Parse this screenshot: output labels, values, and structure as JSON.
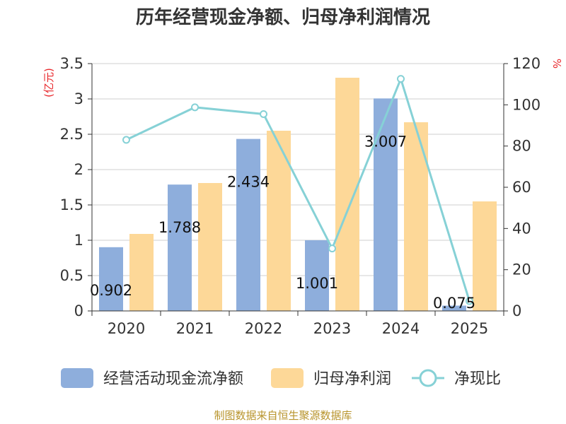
{
  "chart_data": {
    "type": "bar",
    "title": "历年经营现金净额、归母净利润情况",
    "categories": [
      "2020",
      "2021",
      "2022",
      "2023",
      "2024",
      "2025"
    ],
    "y_left": {
      "label": "(亿元)",
      "ylim": [
        0,
        3.5
      ],
      "ticks": [
        "0",
        "0.5",
        "1",
        "1.5",
        "2",
        "2.5",
        "3",
        "3.5"
      ]
    },
    "y_right": {
      "label": "%",
      "ylim": [
        0,
        120
      ],
      "ticks": [
        "0",
        "20",
        "40",
        "60",
        "80",
        "100",
        "120"
      ]
    },
    "series": [
      {
        "name": "经营活动现金流净额",
        "type": "bar",
        "axis": "left",
        "color": "#8eaedc",
        "values": [
          0.902,
          1.788,
          2.434,
          1.001,
          3.007,
          0.075
        ],
        "labels": [
          "0.902",
          "1.788",
          "2.434",
          "1.001",
          "3.007",
          "0.075"
        ]
      },
      {
        "name": "归母净利润",
        "type": "bar",
        "axis": "left",
        "color": "#fdd898",
        "values": [
          1.09,
          1.81,
          2.55,
          3.3,
          2.67,
          1.55
        ]
      },
      {
        "name": "净现比",
        "type": "line",
        "axis": "right",
        "color": "#86d1d6",
        "values": [
          83,
          98.8,
          95.5,
          30.3,
          112.6,
          4.8
        ]
      }
    ],
    "legend_position": "bottom",
    "grid": true
  },
  "source": "制图数据来自恒生聚源数据库"
}
